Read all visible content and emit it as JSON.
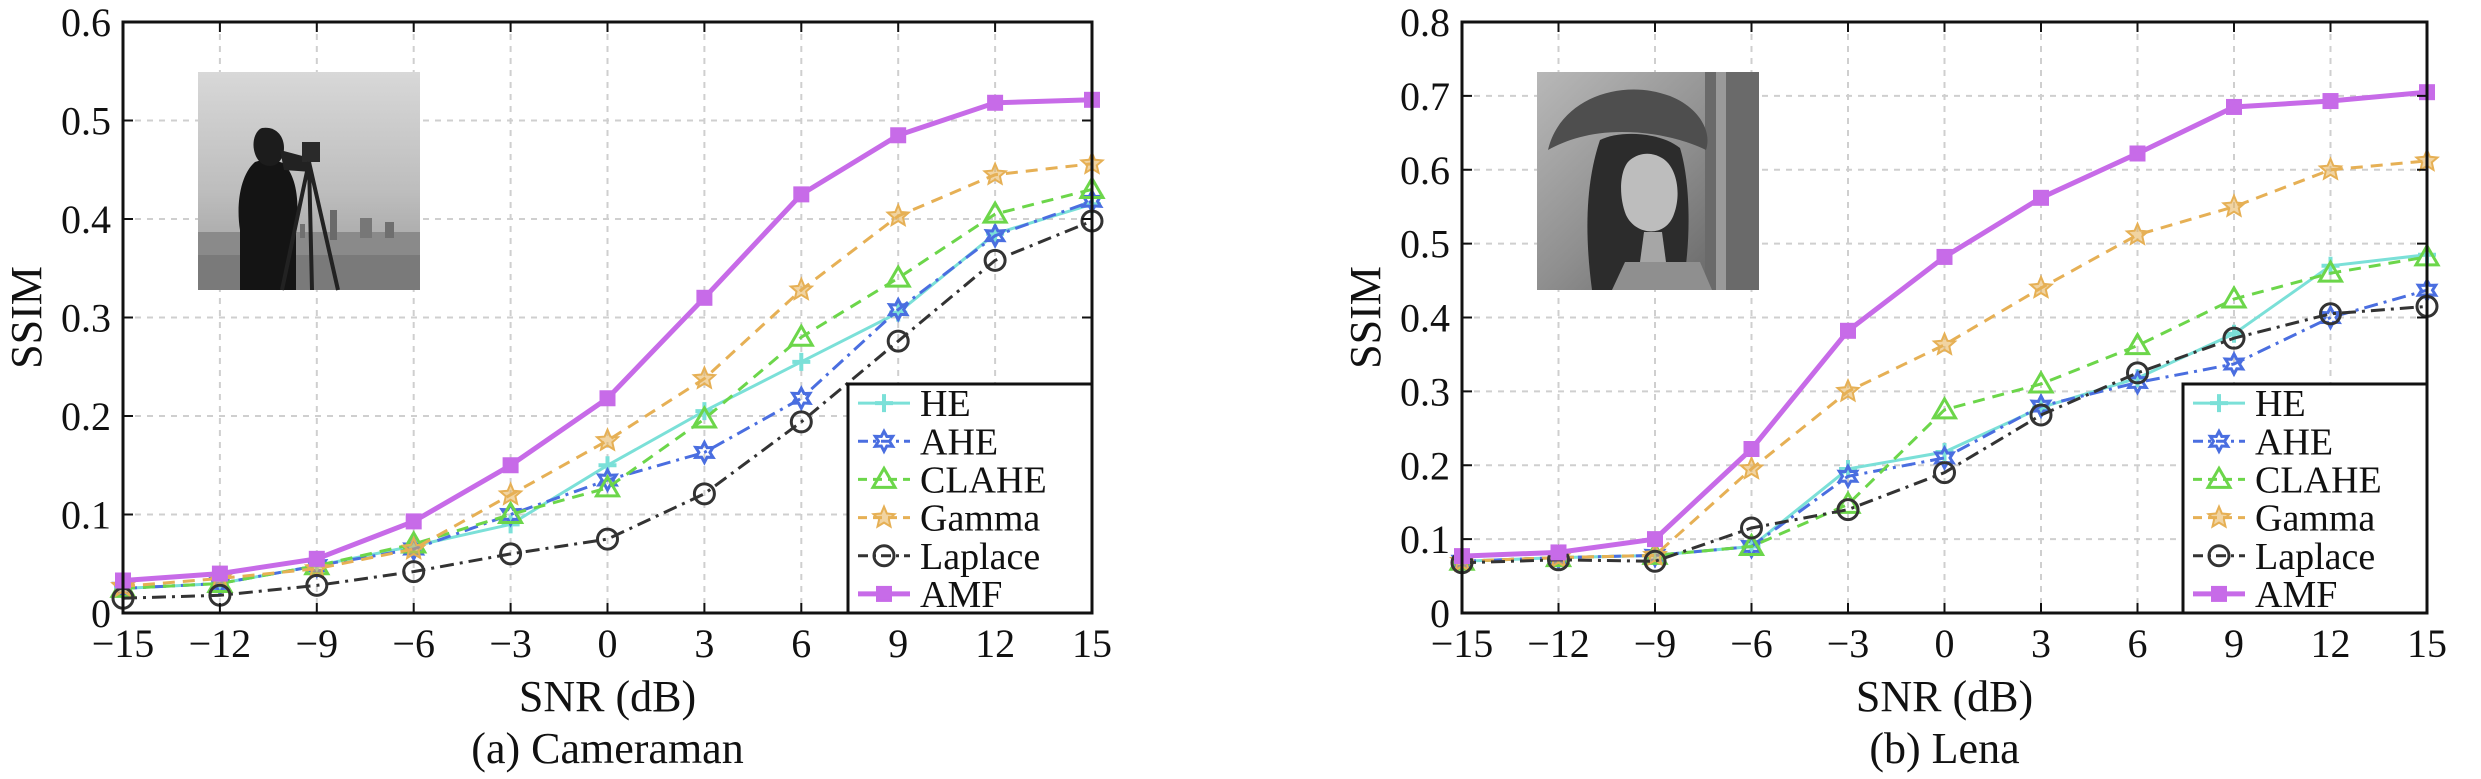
{
  "chart_data": [
    {
      "type": "line",
      "caption": "(a) Cameraman",
      "xlabel": "SNR (dB)",
      "ylabel": "SSIM",
      "x": [
        -15,
        -12,
        -9,
        -6,
        -3,
        0,
        3,
        6,
        9,
        12,
        15
      ],
      "x_tick_labels": [
        "−15",
        "−12",
        "−9",
        "−6",
        "−3",
        "0",
        "3",
        "6",
        "9",
        "12",
        "15"
      ],
      "xlim": [
        -15,
        15
      ],
      "ylim": [
        0,
        0.6
      ],
      "y_ticks": [
        0,
        0.1,
        0.2,
        0.3,
        0.4,
        0.5,
        0.6
      ],
      "y_tick_labels": [
        "0",
        "0.1",
        "0.2",
        "0.3",
        "0.4",
        "0.5",
        "0.6"
      ],
      "grid": true,
      "legend_position": "lower-right",
      "inset_image": "cameraman photo",
      "series": [
        {
          "name": "HE",
          "color": "#7be0d8",
          "marker": "plus",
          "dash": "solid",
          "values": [
            0.025,
            0.03,
            0.048,
            0.068,
            0.09,
            0.15,
            0.205,
            0.255,
            0.305,
            0.385,
            0.415
          ]
        },
        {
          "name": "AHE",
          "color": "#4a6ee0",
          "marker": "hexstar",
          "dash": "dashdot",
          "values": [
            0.025,
            0.03,
            0.048,
            0.065,
            0.1,
            0.135,
            0.163,
            0.218,
            0.308,
            0.383,
            0.418
          ]
        },
        {
          "name": "CLAHE",
          "color": "#6cd64a",
          "marker": "triangle",
          "dash": "dashed",
          "values": [
            0.025,
            0.03,
            0.048,
            0.07,
            0.1,
            0.127,
            0.197,
            0.28,
            0.34,
            0.405,
            0.43
          ]
        },
        {
          "name": "Gamma",
          "color": "#e6b055",
          "marker": "star",
          "dash": "dashed",
          "values": [
            0.027,
            0.035,
            0.045,
            0.065,
            0.12,
            0.175,
            0.238,
            0.328,
            0.403,
            0.445,
            0.456
          ]
        },
        {
          "name": "Laplace",
          "color": "#333333",
          "marker": "circle",
          "dash": "dashdot",
          "values": [
            0.015,
            0.018,
            0.028,
            0.042,
            0.06,
            0.075,
            0.121,
            0.194,
            0.276,
            0.358,
            0.398
          ]
        },
        {
          "name": "AMF",
          "color": "#c76be8",
          "marker": "square",
          "dash": "solid",
          "values": [
            0.033,
            0.04,
            0.055,
            0.093,
            0.15,
            0.218,
            0.32,
            0.425,
            0.485,
            0.518,
            0.521
          ]
        }
      ]
    },
    {
      "type": "line",
      "caption": "(b) Lena",
      "xlabel": "SNR (dB)",
      "ylabel": "SSIM",
      "x": [
        -15,
        -12,
        -9,
        -6,
        -3,
        0,
        3,
        6,
        9,
        12,
        15
      ],
      "x_tick_labels": [
        "−15",
        "−12",
        "−9",
        "−6",
        "−3",
        "0",
        "3",
        "6",
        "9",
        "12",
        "15"
      ],
      "xlim": [
        -15,
        15
      ],
      "ylim": [
        0,
        0.8
      ],
      "y_ticks": [
        0,
        0.1,
        0.2,
        0.3,
        0.4,
        0.5,
        0.6,
        0.7,
        0.8
      ],
      "y_tick_labels": [
        "0",
        "0.1",
        "0.2",
        "0.3",
        "0.4",
        "0.5",
        "0.6",
        "0.7",
        "0.8"
      ],
      "grid": true,
      "legend_position": "lower-right",
      "inset_image": "lena photo",
      "series": [
        {
          "name": "HE",
          "color": "#7be0d8",
          "marker": "plus",
          "dash": "solid",
          "values": [
            0.07,
            0.075,
            0.078,
            0.09,
            0.195,
            0.218,
            0.278,
            0.318,
            0.378,
            0.47,
            0.485
          ]
        },
        {
          "name": "AHE",
          "color": "#4a6ee0",
          "marker": "hexstar",
          "dash": "dashdot",
          "values": [
            0.07,
            0.075,
            0.078,
            0.09,
            0.185,
            0.21,
            0.28,
            0.312,
            0.337,
            0.4,
            0.437
          ]
        },
        {
          "name": "CLAHE",
          "color": "#6cd64a",
          "marker": "triangle",
          "dash": "dashed",
          "values": [
            0.07,
            0.075,
            0.078,
            0.09,
            0.147,
            0.275,
            0.31,
            0.362,
            0.425,
            0.46,
            0.482
          ]
        },
        {
          "name": "Gamma",
          "color": "#e6b055",
          "marker": "star",
          "dash": "dashed",
          "values": [
            0.07,
            0.075,
            0.078,
            0.195,
            0.3,
            0.363,
            0.44,
            0.512,
            0.55,
            0.6,
            0.612
          ]
        },
        {
          "name": "Laplace",
          "color": "#333333",
          "marker": "circle",
          "dash": "dashdot",
          "values": [
            0.068,
            0.072,
            0.07,
            0.115,
            0.14,
            0.19,
            0.268,
            0.325,
            0.372,
            0.405,
            0.415
          ]
        },
        {
          "name": "AMF",
          "color": "#c76be8",
          "marker": "square",
          "dash": "solid",
          "values": [
            0.077,
            0.082,
            0.1,
            0.222,
            0.382,
            0.482,
            0.562,
            0.622,
            0.685,
            0.693,
            0.705
          ]
        }
      ]
    }
  ]
}
